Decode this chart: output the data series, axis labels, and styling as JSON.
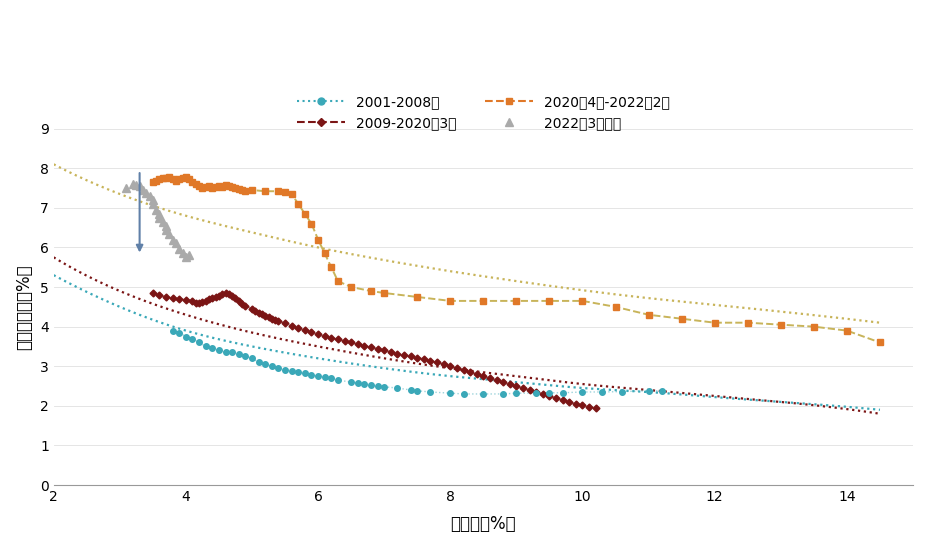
{
  "xlabel": "失业率（%）",
  "ylabel": "职位空缺率（%）",
  "xlim": [
    2,
    15
  ],
  "ylim": [
    0.0,
    9.0
  ],
  "xticks": [
    2,
    4,
    6,
    8,
    10,
    12,
    14
  ],
  "yticks": [
    0.0,
    1.0,
    2.0,
    3.0,
    4.0,
    5.0,
    6.0,
    7.0,
    8.0,
    9.0
  ],
  "colors": {
    "series1": "#3aa8b8",
    "series2": "#7b1515",
    "series3": "#e07828",
    "series4": "#aaaaaa",
    "trend3": "#c8b45a"
  },
  "legend_labels": [
    "2001-2008年",
    "2009-2020年3月",
    "2020年4月-2022年2月",
    "2022年3月以来"
  ],
  "series1": {
    "x": [
      3.8,
      3.9,
      4.0,
      4.1,
      4.2,
      4.3,
      4.4,
      4.5,
      4.6,
      4.7,
      4.8,
      4.9,
      5.0,
      5.1,
      5.2,
      5.3,
      5.4,
      5.5,
      5.6,
      5.7,
      5.8,
      5.9,
      6.0,
      6.1,
      6.2,
      6.3,
      6.5,
      6.6,
      6.7,
      6.8,
      6.9,
      7.0,
      7.2,
      7.4,
      7.5,
      7.7,
      8.0,
      8.2,
      8.5,
      8.8,
      9.0,
      9.3,
      9.5,
      9.7,
      10.0,
      10.3,
      10.6,
      11.0,
      11.2
    ],
    "y": [
      3.9,
      3.85,
      3.75,
      3.7,
      3.6,
      3.5,
      3.45,
      3.4,
      3.35,
      3.35,
      3.3,
      3.25,
      3.2,
      3.1,
      3.05,
      3.0,
      2.95,
      2.9,
      2.88,
      2.85,
      2.82,
      2.78,
      2.75,
      2.72,
      2.7,
      2.65,
      2.6,
      2.58,
      2.55,
      2.52,
      2.5,
      2.48,
      2.45,
      2.4,
      2.38,
      2.35,
      2.32,
      2.3,
      2.3,
      2.3,
      2.32,
      2.32,
      2.33,
      2.33,
      2.35,
      2.35,
      2.36,
      2.38,
      2.38
    ]
  },
  "series2": {
    "x": [
      3.5,
      3.6,
      3.7,
      3.8,
      3.9,
      4.0,
      4.1,
      4.15,
      4.2,
      4.25,
      4.3,
      4.35,
      4.4,
      4.45,
      4.5,
      4.55,
      4.6,
      4.65,
      4.7,
      4.75,
      4.8,
      4.85,
      4.9,
      5.0,
      5.05,
      5.1,
      5.15,
      5.2,
      5.25,
      5.3,
      5.35,
      5.4,
      5.5,
      5.6,
      5.7,
      5.8,
      5.9,
      6.0,
      6.1,
      6.2,
      6.3,
      6.4,
      6.5,
      6.6,
      6.7,
      6.8,
      6.9,
      7.0,
      7.1,
      7.2,
      7.3,
      7.4,
      7.5,
      7.6,
      7.7,
      7.8,
      7.9,
      8.0,
      8.1,
      8.2,
      8.3,
      8.4,
      8.5,
      8.6,
      8.7,
      8.8,
      8.9,
      9.0,
      9.1,
      9.2,
      9.3,
      9.4,
      9.5,
      9.6,
      9.7,
      9.8,
      9.9,
      10.0,
      10.1,
      10.2
    ],
    "y": [
      4.85,
      4.8,
      4.75,
      4.72,
      4.7,
      4.68,
      4.65,
      4.6,
      4.6,
      4.62,
      4.65,
      4.7,
      4.72,
      4.75,
      4.78,
      4.82,
      4.85,
      4.82,
      4.78,
      4.72,
      4.65,
      4.58,
      4.52,
      4.45,
      4.4,
      4.35,
      4.32,
      4.28,
      4.25,
      4.2,
      4.18,
      4.15,
      4.08,
      4.02,
      3.97,
      3.92,
      3.87,
      3.82,
      3.77,
      3.72,
      3.68,
      3.64,
      3.6,
      3.55,
      3.52,
      3.48,
      3.44,
      3.4,
      3.36,
      3.32,
      3.28,
      3.25,
      3.22,
      3.18,
      3.14,
      3.1,
      3.05,
      3.0,
      2.95,
      2.9,
      2.85,
      2.8,
      2.75,
      2.7,
      2.65,
      2.6,
      2.55,
      2.5,
      2.45,
      2.4,
      2.35,
      2.3,
      2.25,
      2.2,
      2.15,
      2.1,
      2.05,
      2.02,
      1.98,
      1.95
    ]
  },
  "series3": {
    "x": [
      3.5,
      3.55,
      3.6,
      3.65,
      3.7,
      3.75,
      3.8,
      3.85,
      3.9,
      3.95,
      4.0,
      4.05,
      4.1,
      4.15,
      4.2,
      4.25,
      4.3,
      4.35,
      4.4,
      4.45,
      4.5,
      4.55,
      4.6,
      4.65,
      4.7,
      4.75,
      4.8,
      4.85,
      4.9,
      5.0,
      5.2,
      5.4,
      5.5,
      5.6,
      5.7,
      5.8,
      5.9,
      6.0,
      6.1,
      6.2,
      6.3,
      6.5,
      6.8,
      7.0,
      7.5,
      8.0,
      8.5,
      9.0,
      9.5,
      10.0,
      10.5,
      11.0,
      11.5,
      12.0,
      12.5,
      13.0,
      13.5,
      14.0,
      14.5
    ],
    "y": [
      7.65,
      7.68,
      7.72,
      7.75,
      7.75,
      7.78,
      7.72,
      7.68,
      7.72,
      7.75,
      7.78,
      7.72,
      7.65,
      7.6,
      7.55,
      7.5,
      7.52,
      7.55,
      7.5,
      7.52,
      7.55,
      7.52,
      7.58,
      7.55,
      7.52,
      7.5,
      7.48,
      7.45,
      7.42,
      7.45,
      7.42,
      7.42,
      7.4,
      7.35,
      7.1,
      6.85,
      6.6,
      6.2,
      5.85,
      5.5,
      5.15,
      5.0,
      4.9,
      4.85,
      4.75,
      4.65,
      4.65,
      4.65,
      4.65,
      4.65,
      4.5,
      4.3,
      4.2,
      4.1,
      4.1,
      4.05,
      4.0,
      3.9,
      3.6
    ]
  },
  "series4": {
    "x": [
      3.1,
      3.2,
      3.25,
      3.3,
      3.35,
      3.4,
      3.45,
      3.5,
      3.5,
      3.55,
      3.6,
      3.6,
      3.65,
      3.7,
      3.7,
      3.75,
      3.8,
      3.85,
      3.9,
      3.95,
      4.0,
      4.05
    ],
    "y": [
      7.5,
      7.6,
      7.58,
      7.55,
      7.45,
      7.38,
      7.3,
      7.2,
      7.1,
      6.95,
      6.85,
      6.75,
      6.65,
      6.55,
      6.45,
      6.35,
      6.2,
      6.1,
      5.95,
      5.85,
      5.75,
      5.8
    ]
  },
  "trend1_pts": {
    "x": [
      2.0,
      3.0,
      4.0,
      5.0,
      6.0,
      7.0,
      8.0,
      9.0,
      10.0,
      11.0,
      12.0,
      13.0,
      14.5
    ],
    "y": [
      5.3,
      4.5,
      3.9,
      3.5,
      3.2,
      2.95,
      2.75,
      2.6,
      2.45,
      2.35,
      2.22,
      2.1,
      1.9
    ]
  },
  "trend2_pts": {
    "x": [
      2.0,
      3.0,
      4.0,
      5.0,
      6.0,
      7.0,
      8.0,
      9.0,
      10.0,
      11.0,
      12.0,
      13.0,
      14.5
    ],
    "y": [
      5.75,
      4.9,
      4.3,
      3.85,
      3.5,
      3.2,
      2.95,
      2.75,
      2.55,
      2.4,
      2.25,
      2.1,
      1.8
    ]
  },
  "trend3_pts": {
    "x": [
      2.0,
      3.0,
      4.0,
      5.0,
      6.0,
      7.0,
      8.0,
      9.0,
      10.0,
      11.0,
      12.0,
      13.0,
      14.5
    ],
    "y": [
      8.1,
      7.35,
      6.8,
      6.38,
      6.0,
      5.68,
      5.4,
      5.15,
      4.92,
      4.72,
      4.55,
      4.38,
      4.1
    ]
  },
  "arrow": {
    "x": 3.3,
    "y_start": 7.95,
    "y_end": 5.8,
    "color": "#6080a8"
  }
}
